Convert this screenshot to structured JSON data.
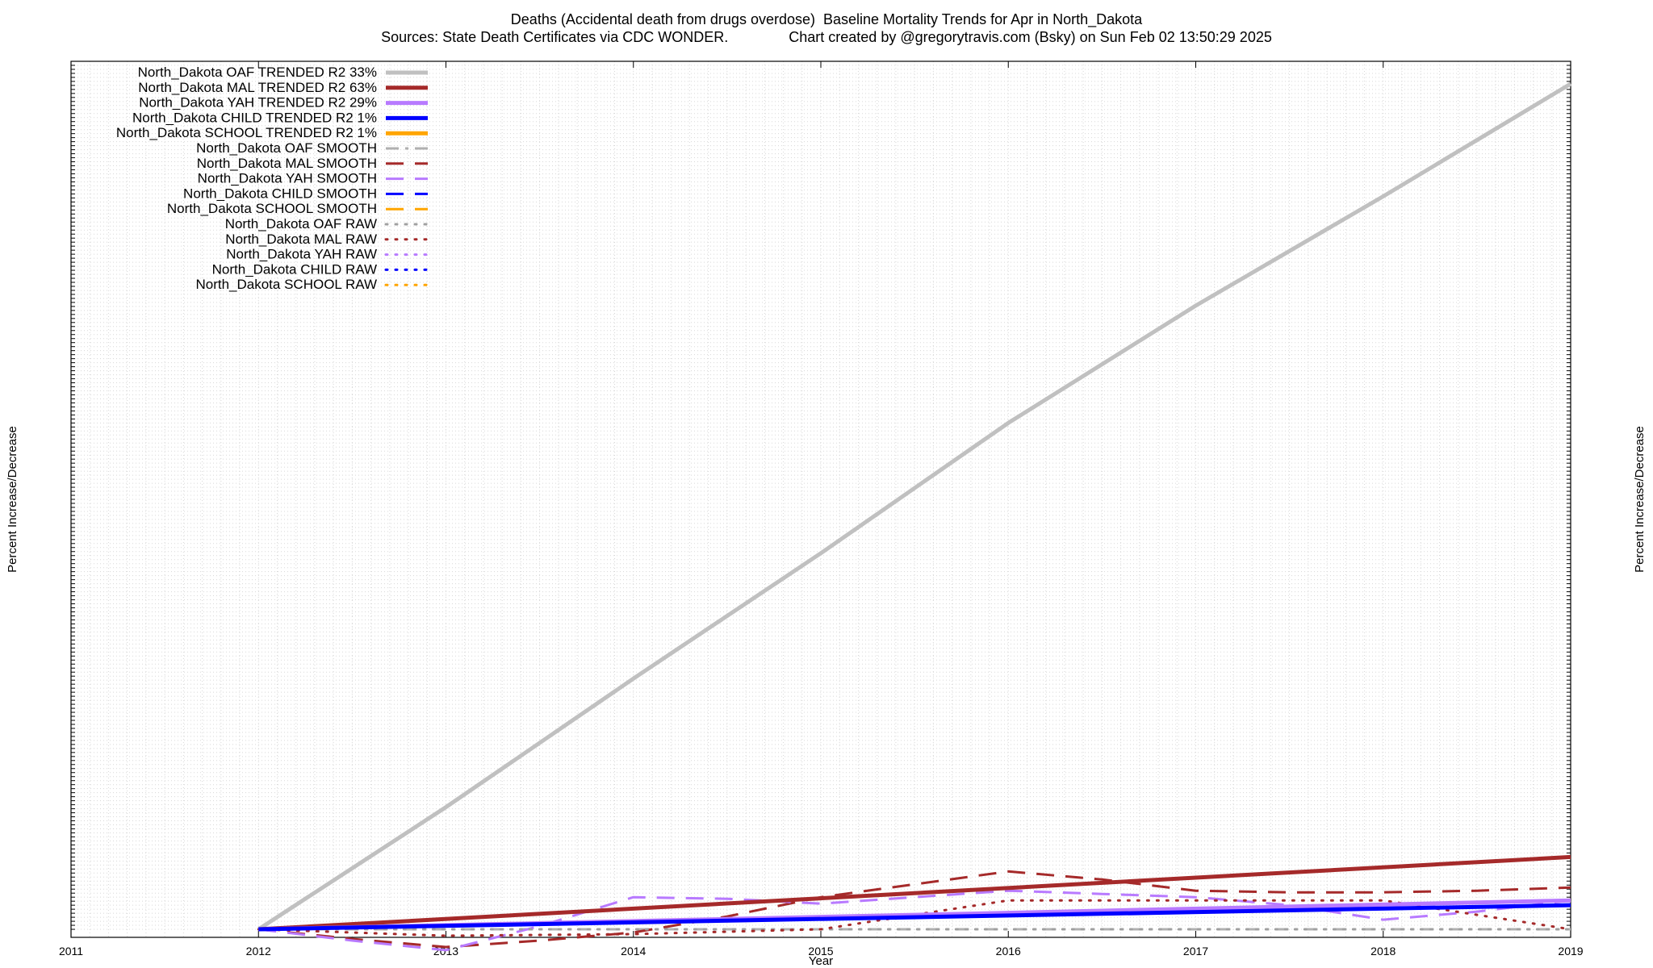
{
  "chart_data": {
    "type": "line",
    "title": "Deaths (Accidental death from drugs overdose)  Baseline Mortality Trends for Apr in North_Dakota",
    "subtitle": "Sources: State Death Certificates via CDC WONDER.               Chart created by @gregorytravis.com (Bsky) on Sun Feb 02 13:50:29 2025",
    "xlabel": "Year",
    "ylabel": "Percent Increase/Decrease",
    "x_ticks": [
      "2011",
      "2012",
      "2013",
      "2014",
      "2015",
      "2016",
      "2017",
      "2018",
      "2019"
    ],
    "xlim": [
      2011,
      2019
    ],
    "ylim": [
      -50,
      5400
    ],
    "grid": true,
    "legend_position": "top-left",
    "series": [
      {
        "name": "North_Dakota OAF TRENDED R2  33%",
        "color": "#c0c0c0",
        "style": "solid-thick",
        "x": [
          2012,
          2013,
          2014,
          2015,
          2016,
          2017,
          2018,
          2019
        ],
        "y": [
          0,
          760,
          1560,
          2340,
          3150,
          3880,
          4560,
          5260
        ]
      },
      {
        "name": "North_Dakota MAL TRENDED R2  63%",
        "color": "#a52a2a",
        "style": "solid-thick",
        "x": [
          2012,
          2019
        ],
        "y": [
          0,
          450
        ]
      },
      {
        "name": "North_Dakota YAH TRENDED R2  29%",
        "color": "#b87aff",
        "style": "solid-thick",
        "x": [
          2012,
          2019
        ],
        "y": [
          0,
          180
        ]
      },
      {
        "name": "North_Dakota CHILD TRENDED R2   1%",
        "color": "#0000ff",
        "style": "solid-thick",
        "x": [
          2012,
          2019
        ],
        "y": [
          0,
          150
        ]
      },
      {
        "name": "North_Dakota SCHOOL TRENDED R2   1%",
        "color": "#ffa500",
        "style": "solid-thick",
        "x": [],
        "y": []
      },
      {
        "name": "North_Dakota OAF SMOOTH",
        "color": "#b0b0b0",
        "style": "dashdot",
        "x": [
          2012,
          2019
        ],
        "y": [
          0,
          0
        ]
      },
      {
        "name": "North_Dakota MAL SMOOTH",
        "color": "#a52a2a",
        "style": "dashed",
        "x": [
          2012,
          2012.5,
          2013,
          2013.5,
          2014,
          2014.5,
          2015,
          2015.5,
          2016,
          2016.5,
          2017,
          2017.5,
          2018,
          2018.5,
          2019
        ],
        "y": [
          0,
          -60,
          -110,
          -70,
          -20,
          80,
          200,
          280,
          360,
          310,
          240,
          230,
          230,
          240,
          260
        ]
      },
      {
        "name": "North_Dakota YAH SMOOTH",
        "color": "#b87aff",
        "style": "dashed",
        "x": [
          2012,
          2012.5,
          2013,
          2013.5,
          2014,
          2014.5,
          2015,
          2015.5,
          2016,
          2016.5,
          2017,
          2017.5,
          2018,
          2018.5,
          2019
        ],
        "y": [
          0,
          -70,
          -130,
          20,
          200,
          190,
          160,
          200,
          240,
          220,
          200,
          150,
          60,
          110,
          180
        ]
      },
      {
        "name": "North_Dakota CHILD SMOOTH",
        "color": "#0000ff",
        "style": "dashed",
        "x": [],
        "y": []
      },
      {
        "name": "North_Dakota SCHOOL SMOOTH",
        "color": "#ffa500",
        "style": "dashed",
        "x": [],
        "y": []
      },
      {
        "name": "North_Dakota OAF RAW",
        "color": "#a0a0a0",
        "style": "dotted",
        "x": [
          2012,
          2019
        ],
        "y": [
          0,
          0
        ]
      },
      {
        "name": "North_Dakota MAL RAW",
        "color": "#a52a2a",
        "style": "dotted",
        "x": [
          2012,
          2013,
          2014,
          2015,
          2016,
          2017,
          2018,
          2019
        ],
        "y": [
          0,
          -40,
          -30,
          0,
          180,
          180,
          180,
          0
        ]
      },
      {
        "name": "North_Dakota YAH RAW",
        "color": "#b87aff",
        "style": "dotted",
        "x": [],
        "y": []
      },
      {
        "name": "North_Dakota CHILD RAW",
        "color": "#0000ff",
        "style": "dotted",
        "x": [],
        "y": []
      },
      {
        "name": "North_Dakota SCHOOL RAW",
        "color": "#ffa500",
        "style": "dotted",
        "x": [],
        "y": []
      }
    ]
  }
}
